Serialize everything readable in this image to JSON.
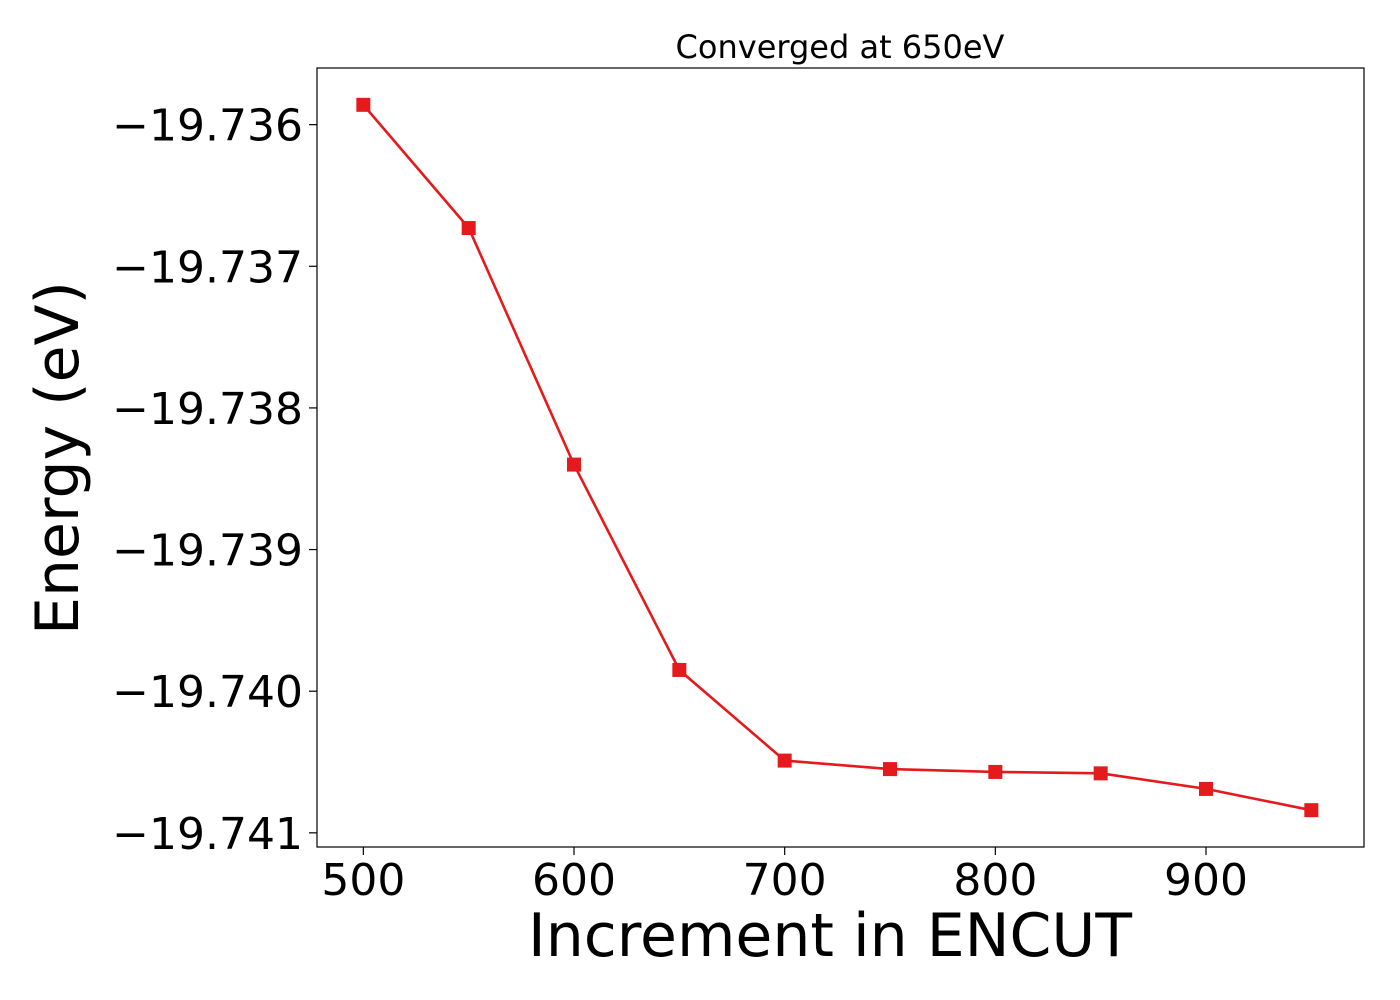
{
  "chart_data": {
    "type": "line",
    "title": "Converged at 650eV",
    "xlabel": "Increment in ENCUT",
    "ylabel": "Energy (eV)",
    "xlim": [
      478,
      975
    ],
    "ylim": [
      -19.7411,
      -19.7356
    ],
    "xticks": [
      500,
      600,
      700,
      800,
      900
    ],
    "xtick_labels": [
      "500",
      "600",
      "700",
      "800",
      "900"
    ],
    "yticks": [
      -19.736,
      -19.737,
      -19.738,
      -19.739,
      -19.74,
      -19.741
    ],
    "ytick_labels": [
      "−19.736",
      "−19.737",
      "−19.738",
      "−19.739",
      "−19.740",
      "−19.741"
    ],
    "grid": false,
    "series": [
      {
        "color": "#e41a1c",
        "marker": "square",
        "x": [
          500,
          550,
          600,
          650,
          700,
          750,
          800,
          850,
          900,
          950
        ],
        "y": [
          -19.73586,
          -19.73673,
          -19.7384,
          -19.73985,
          -19.74049,
          -19.74055,
          -19.74057,
          -19.74058,
          -19.74069,
          -19.74084
        ]
      }
    ]
  }
}
